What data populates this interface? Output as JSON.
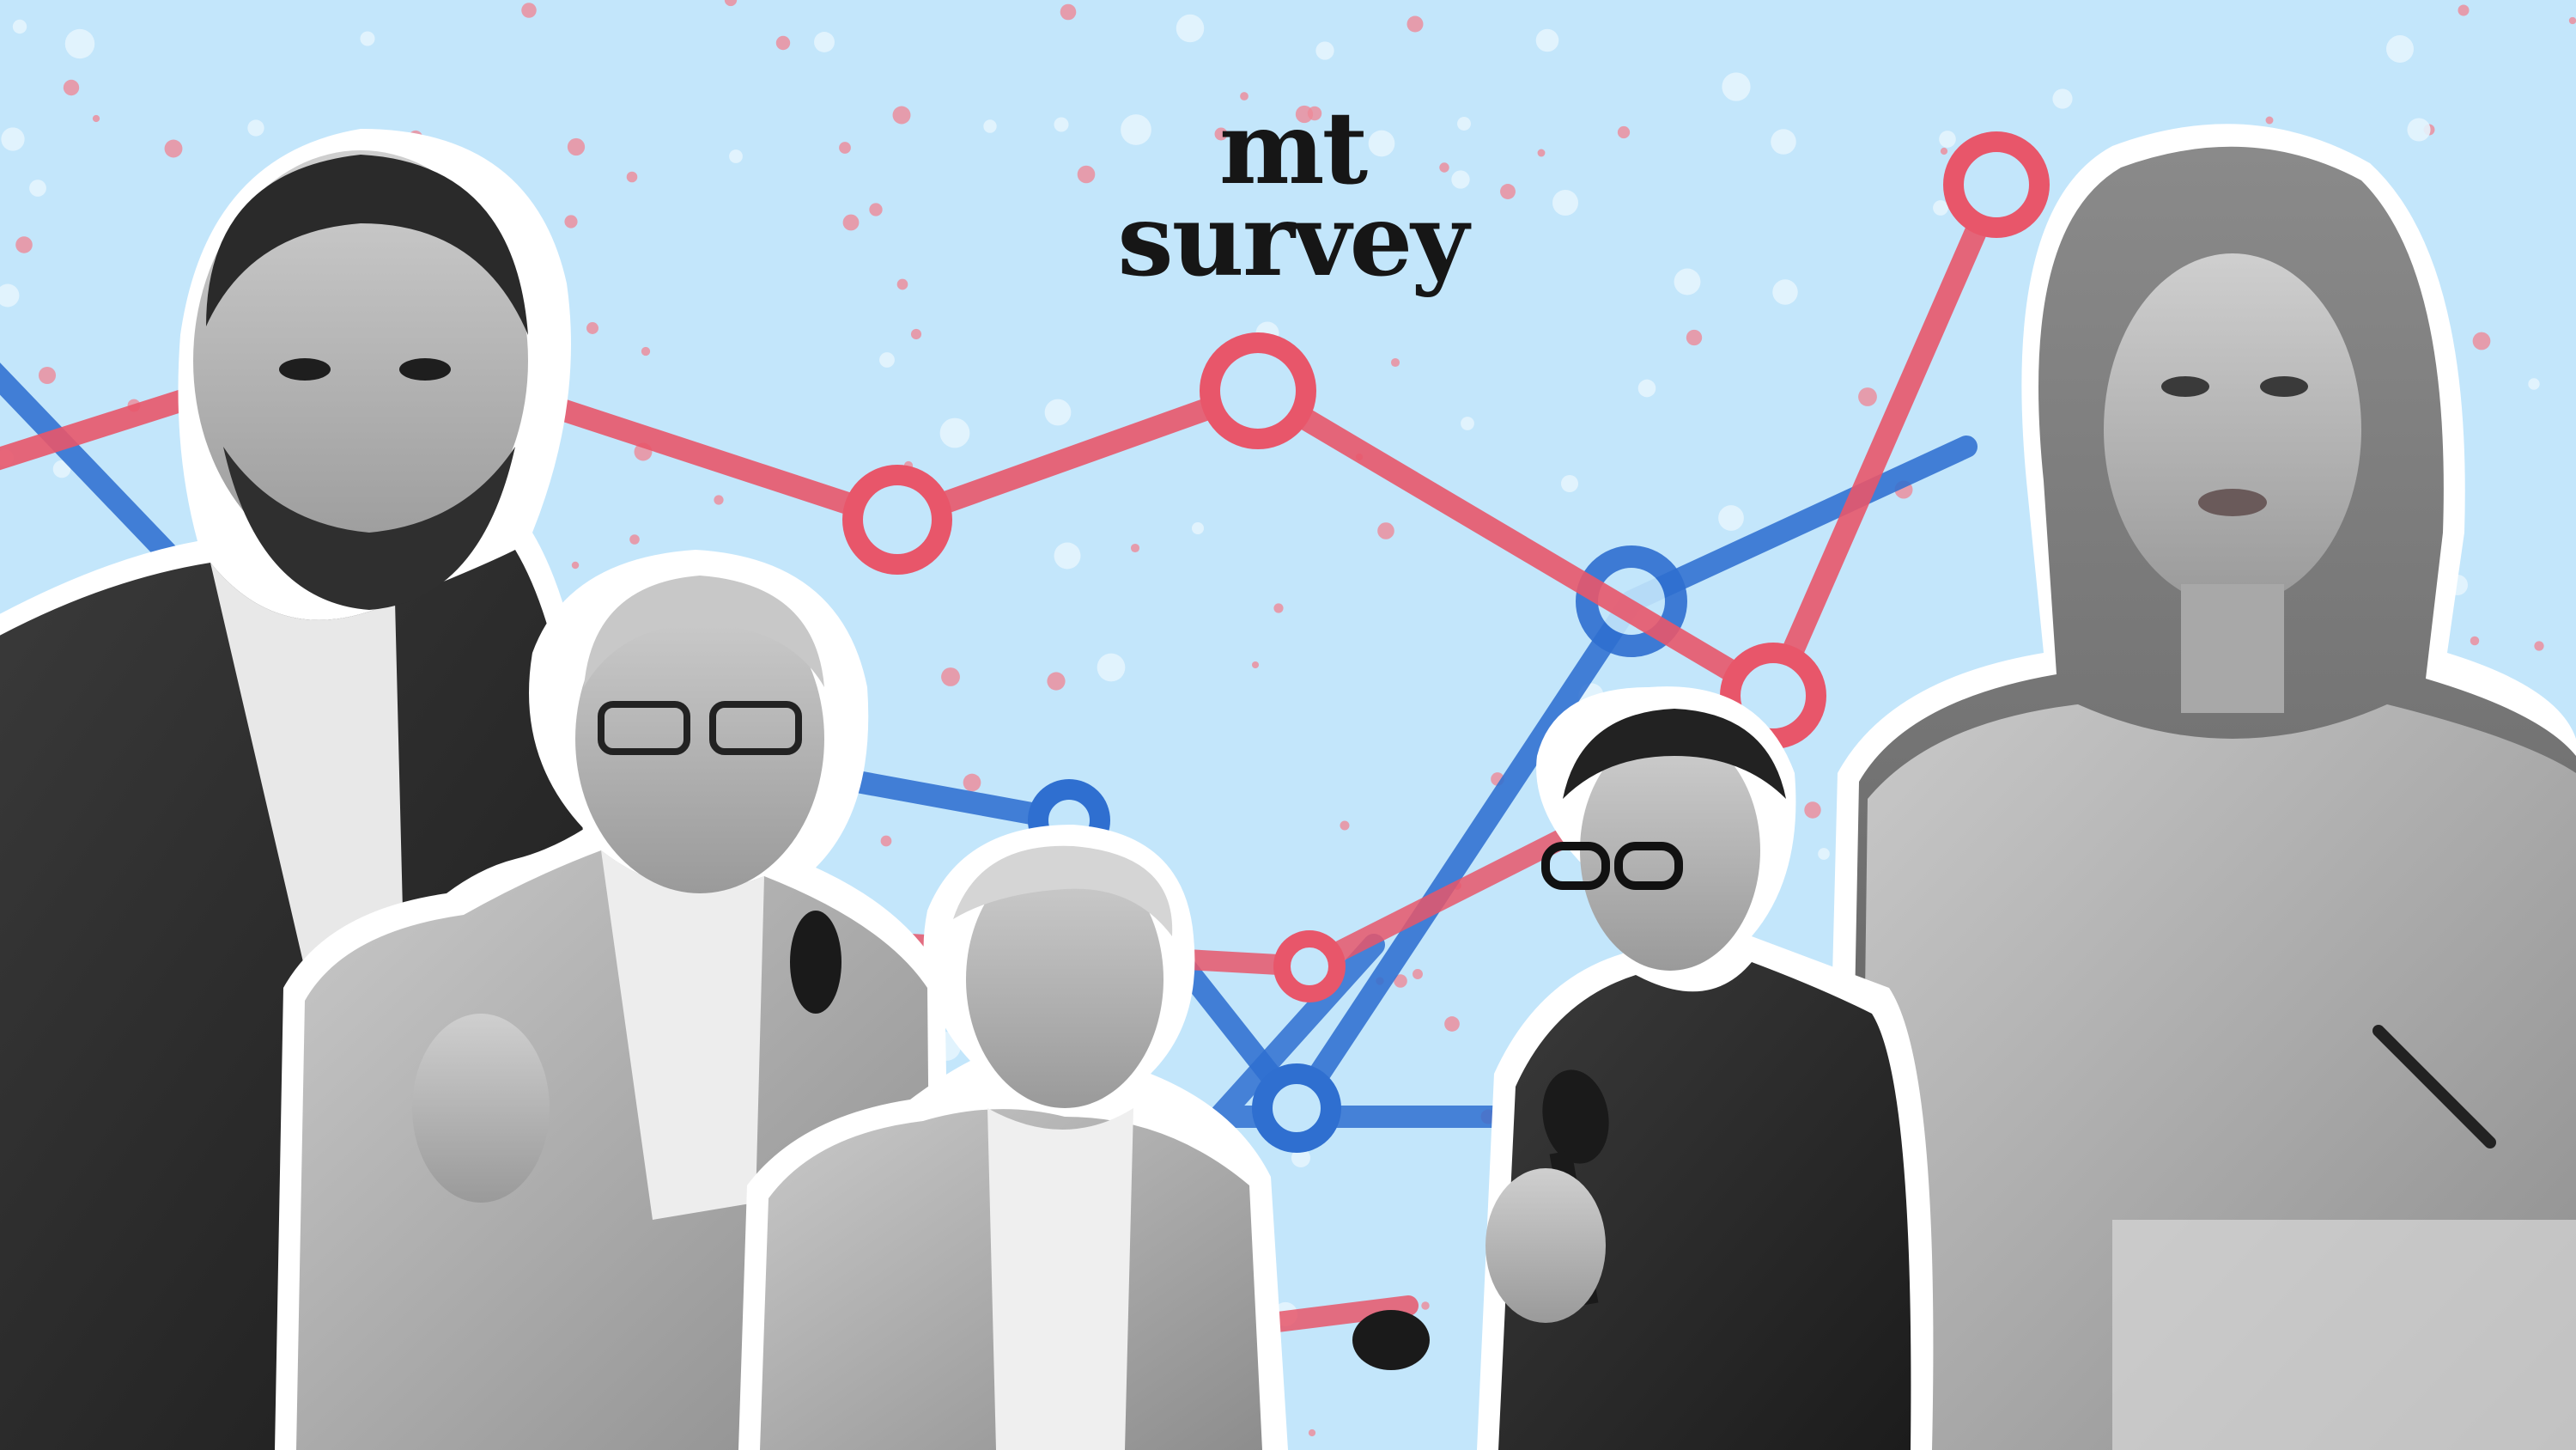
{
  "brand": {
    "line1": "mt",
    "line2": "survey",
    "logo_color": "#161616"
  },
  "colors": {
    "background": "#c3e6fb",
    "red_line": "#e8566a",
    "blue_line": "#2f6fd0",
    "photo_tone": "grayscale"
  },
  "people": [
    {
      "name": "person-left",
      "role": "speaker"
    },
    {
      "name": "person-second",
      "role": "speaker"
    },
    {
      "name": "person-center",
      "role": "speaker"
    },
    {
      "name": "person-woman-mic",
      "role": "speaker"
    },
    {
      "name": "person-right",
      "role": "speaker"
    }
  ]
}
